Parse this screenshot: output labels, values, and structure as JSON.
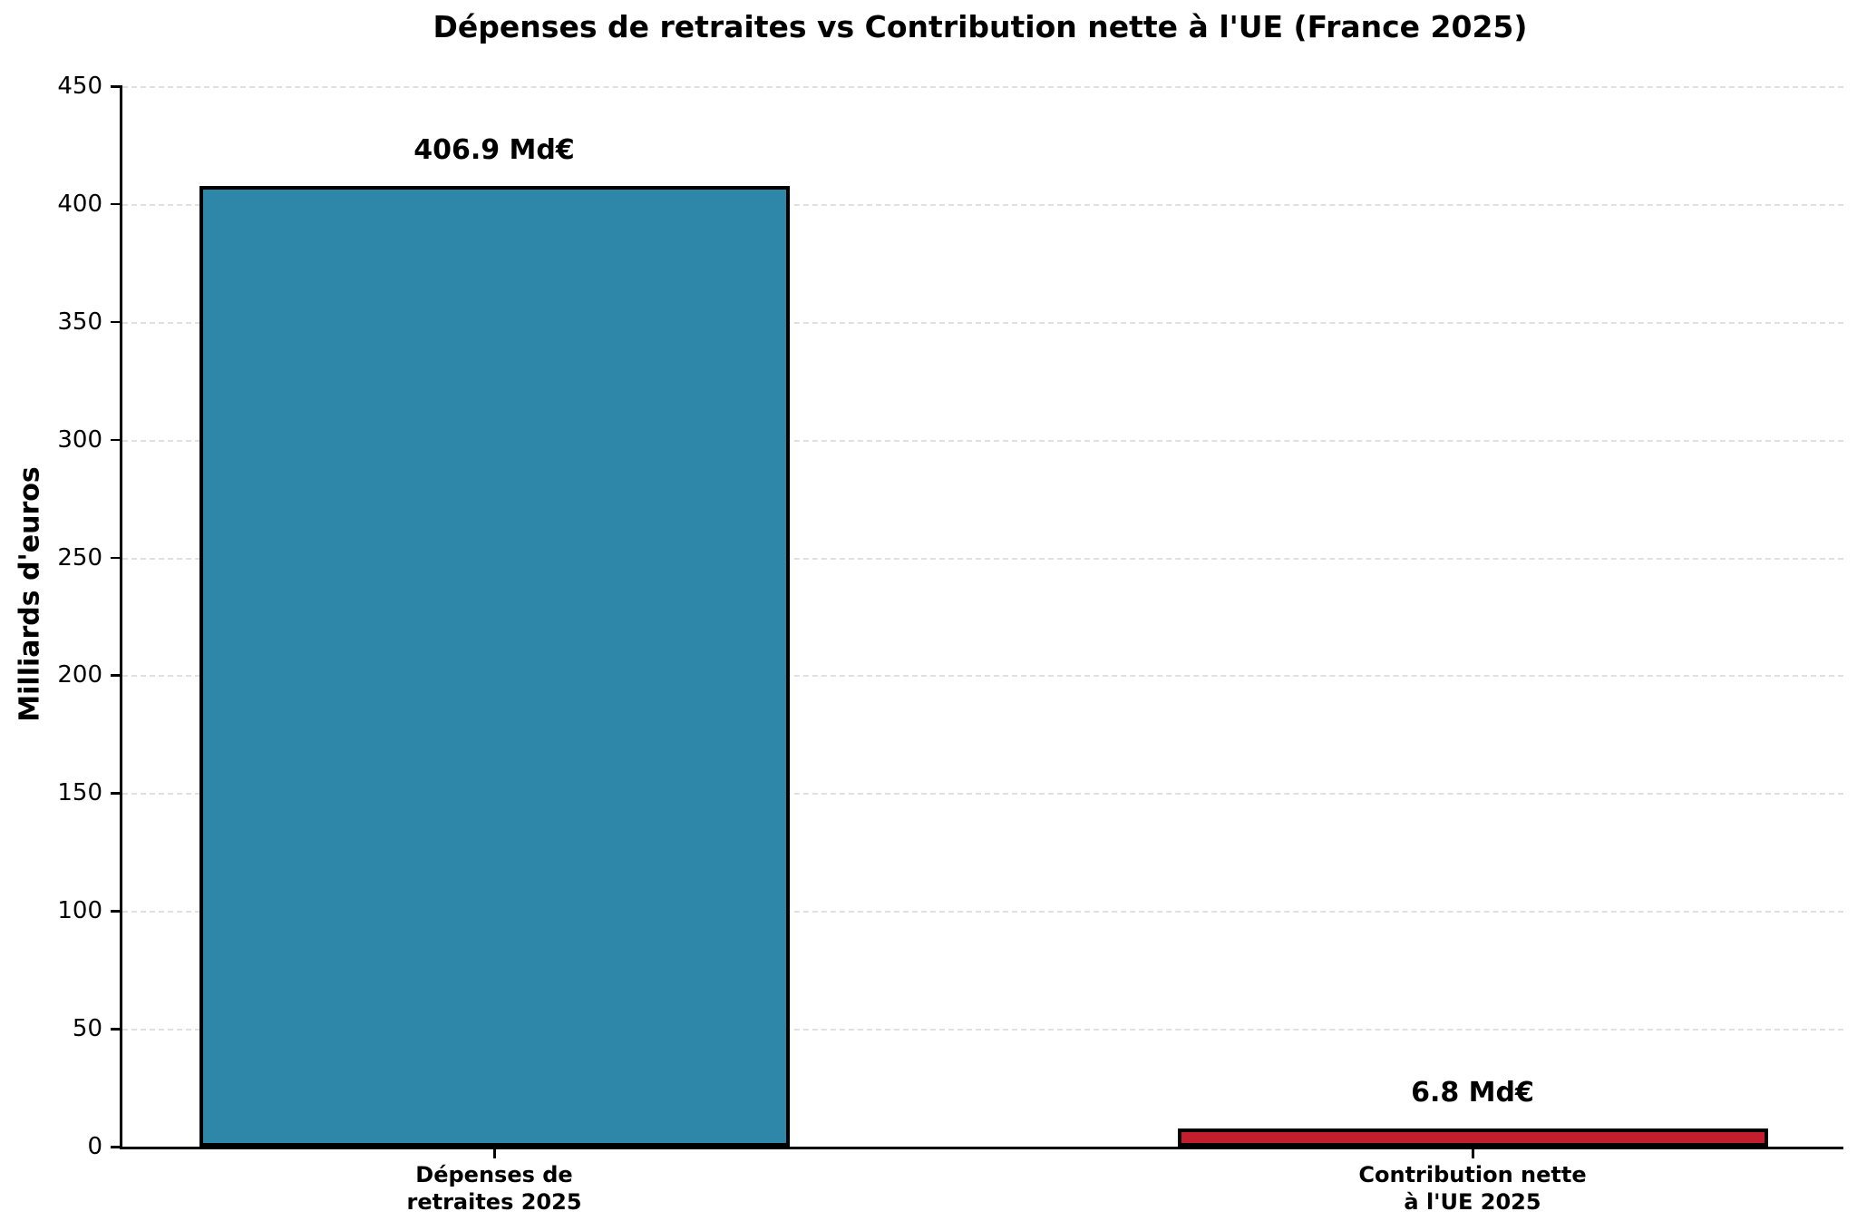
{
  "chart_data": {
    "type": "bar",
    "title": "Dépenses de retraites vs Contribution nette à l'UE (France 2025)",
    "xlabel": "",
    "ylabel": "Milliards d'euros",
    "ylim": [
      0,
      450
    ],
    "yticks": [
      0,
      50,
      100,
      150,
      200,
      250,
      300,
      350,
      400,
      450
    ],
    "grid": "horizontal-dashed",
    "legend_position": "none",
    "categories": [
      "Dépenses de retraites 2025",
      "Contribution nette à l'UE 2025"
    ],
    "values": [
      406.9,
      6.8
    ],
    "bars": [
      {
        "label_lines": [
          "Dépenses de",
          "retraites 2025"
        ],
        "value": 406.9,
        "value_label": "406.9 Md€",
        "color": "#2E86A9"
      },
      {
        "label_lines": [
          "Contribution nette",
          "à l'UE 2025"
        ],
        "value": 6.8,
        "value_label": "6.8 Md€",
        "color": "#C21E2D"
      }
    ],
    "bar_edge_color": "#000000",
    "grid_color": "#e0e0e0"
  }
}
